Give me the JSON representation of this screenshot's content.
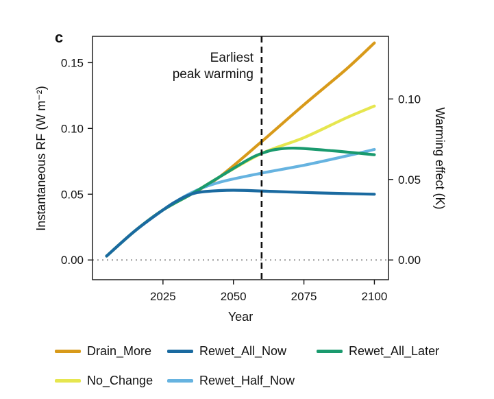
{
  "chart_data": {
    "type": "line",
    "panel_label": "c",
    "xlabel": "Year",
    "ylabel_left": "Instantaneous RF (W m⁻²)",
    "ylabel_right": "Warming effect (K)",
    "xlim": [
      2000,
      2105
    ],
    "ylim": [
      -0.015,
      0.17
    ],
    "x_ticks": [
      2025,
      2050,
      2075,
      2100
    ],
    "x_tick_labels": [
      "2025",
      "2050",
      "2075",
      "2100"
    ],
    "y_ticks": [
      0.0,
      0.05,
      0.1,
      0.15
    ],
    "y_tick_labels": [
      "0.00",
      "0.05",
      "0.10",
      "0.15"
    ],
    "right_ticks": [
      {
        "value": 0.0,
        "label": "0.00"
      },
      {
        "value": 0.0612,
        "label": "0.05"
      },
      {
        "value": 0.1224,
        "label": "0.10"
      }
    ],
    "vline": {
      "x": 2060,
      "label_line1": "Earliest",
      "label_line2": "peak warming"
    },
    "hline_zero": true,
    "series": [
      {
        "name": "Drain_More",
        "color": "#d89a1a",
        "x": [
          2005,
          2015,
          2025,
          2035,
          2045,
          2060,
          2075,
          2090,
          2100
        ],
        "y": [
          0.003,
          0.022,
          0.038,
          0.05,
          0.063,
          0.09,
          0.118,
          0.145,
          0.165
        ]
      },
      {
        "name": "No_Change",
        "color": "#e6e64f",
        "x": [
          2005,
          2015,
          2025,
          2035,
          2045,
          2060,
          2075,
          2090,
          2100
        ],
        "y": [
          0.003,
          0.022,
          0.038,
          0.05,
          0.063,
          0.081,
          0.093,
          0.108,
          0.117
        ]
      },
      {
        "name": "Rewet_All_Now",
        "color": "#1a6aa0",
        "x": [
          2005,
          2015,
          2025,
          2030,
          2035,
          2040,
          2050,
          2065,
          2080,
          2100
        ],
        "y": [
          0.003,
          0.022,
          0.038,
          0.045,
          0.05,
          0.052,
          0.053,
          0.052,
          0.051,
          0.05
        ]
      },
      {
        "name": "Rewet_Half_Now",
        "color": "#66b3e0",
        "x": [
          2005,
          2015,
          2025,
          2035,
          2045,
          2060,
          2075,
          2090,
          2100
        ],
        "y": [
          0.003,
          0.022,
          0.038,
          0.051,
          0.059,
          0.066,
          0.072,
          0.079,
          0.084
        ]
      },
      {
        "name": "Rewet_All_Later",
        "color": "#1a9a6e",
        "x": [
          2005,
          2015,
          2025,
          2035,
          2045,
          2055,
          2060,
          2065,
          2072,
          2085,
          2100
        ],
        "y": [
          0.003,
          0.022,
          0.038,
          0.05,
          0.063,
          0.076,
          0.081,
          0.084,
          0.085,
          0.083,
          0.08
        ]
      }
    ],
    "legend": {
      "row1": [
        "Drain_More",
        "Rewet_All_Now",
        "Rewet_All_Later"
      ],
      "row2": [
        "No_Change",
        "Rewet_Half_Now"
      ]
    }
  }
}
